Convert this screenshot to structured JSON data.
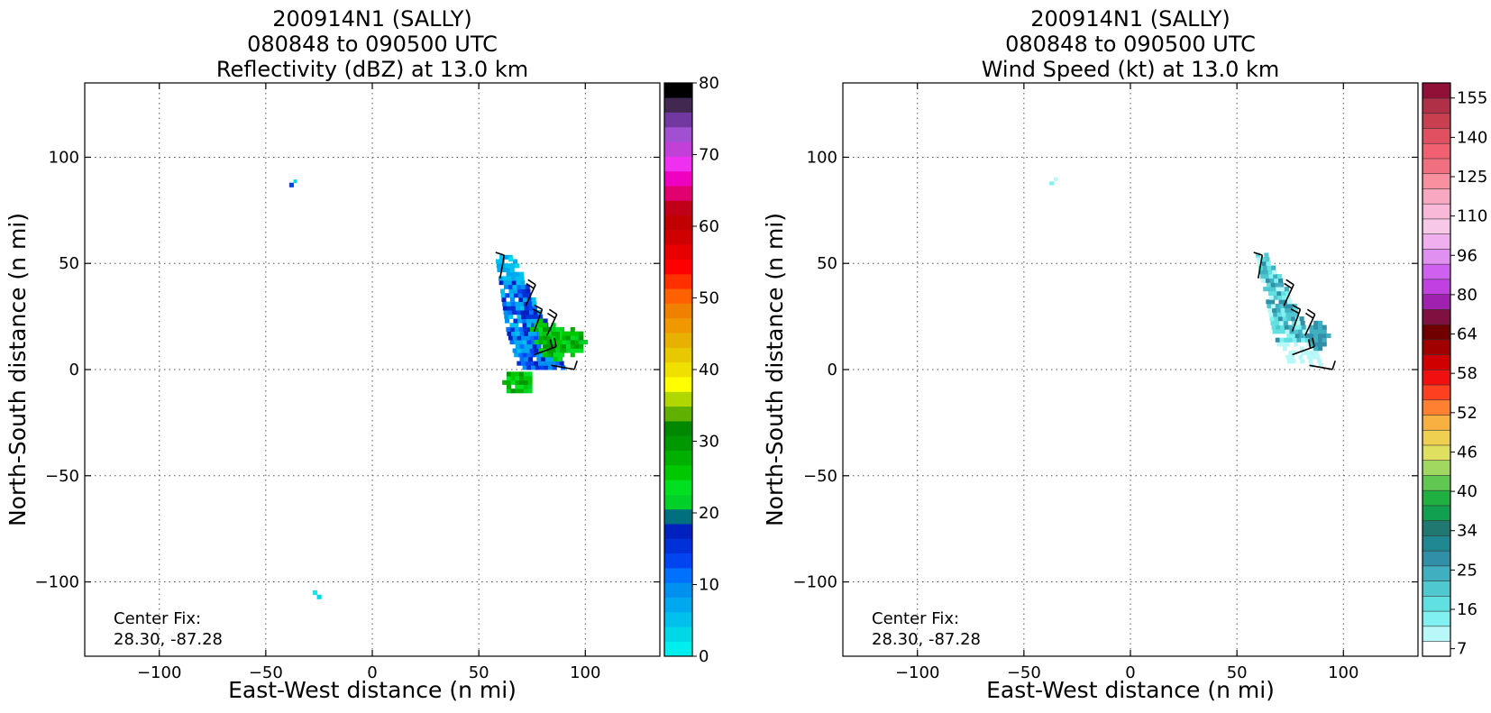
{
  "figure": {
    "left_panel": {
      "title_lines": [
        "200914N1 (SALLY)",
        "080848 to 090500 UTC",
        "Reflectivity (dBZ) at 13.0 km"
      ],
      "xlabel": "East-West distance (n mi)",
      "ylabel": "North-South distance (n mi)",
      "center_fix": [
        "Center Fix:",
        "28.30, -87.28"
      ]
    },
    "right_panel": {
      "title_lines": [
        "200914N1 (SALLY)",
        "080848 to 090500 UTC",
        "Wind Speed (kt) at 13.0 km"
      ],
      "xlabel": "East-West distance (n mi)",
      "ylabel": "North-South distance (n mi)",
      "center_fix": [
        "Center Fix:",
        "28.30, -87.28"
      ]
    }
  },
  "chart_data": [
    {
      "type": "heatmap",
      "title": "200914N1 (SALLY) 080848 to 090500 UTC Reflectivity (dBZ) at 13.0 km",
      "xlabel": "East-West distance (n mi)",
      "ylabel": "North-South distance (n mi)",
      "xlim": [
        -135,
        135
      ],
      "ylim": [
        -135,
        135
      ],
      "xticks": [
        -100,
        -50,
        0,
        50,
        100
      ],
      "yticks": [
        -100,
        -50,
        0,
        50,
        100
      ],
      "grid": true,
      "colorbar": {
        "label_values": [
          0,
          10,
          20,
          30,
          40,
          50,
          60,
          70,
          80
        ],
        "min": 0,
        "max": 80,
        "colors": [
          "#00eeee",
          "#00d8e8",
          "#00c0ee",
          "#00a8f0",
          "#0090f0",
          "#0070ff",
          "#0045f0",
          "#0030d8",
          "#0020c0",
          "#007080",
          "#00d028",
          "#00e020",
          "#00c800",
          "#00b000",
          "#009800",
          "#008800",
          "#60b000",
          "#b0d800",
          "#ffff00",
          "#f0e000",
          "#e8c800",
          "#e8b000",
          "#f09800",
          "#f08000",
          "#ff6000",
          "#ff3000",
          "#ff0000",
          "#e80000",
          "#d00000",
          "#c00000",
          "#c00018",
          "#e0006e",
          "#f000c0",
          "#f030f0",
          "#c040d8",
          "#a050d0",
          "#7038a0",
          "#402850",
          "#000000"
        ]
      },
      "regions": [
        {
          "name": "main echo (10-15 dBZ)",
          "approx_x_range": [
            62,
            88
          ],
          "approx_y_range": [
            0,
            50
          ],
          "approx_dbz": 12
        },
        {
          "name": "embedded cells (20-25 dBZ)",
          "approx_x_range": [
            70,
            98
          ],
          "approx_y_range": [
            4,
            24
          ],
          "approx_dbz": 22
        },
        {
          "name": "southern cell (20-25 dBZ)",
          "approx_x_range": [
            60,
            75
          ],
          "approx_y_range": [
            -13,
            -1
          ],
          "approx_dbz": 22
        },
        {
          "name": "isolated pixel",
          "approx_x": -38,
          "approx_y": 87,
          "approx_dbz": 12
        },
        {
          "name": "isolated pixel",
          "approx_x": -27,
          "approx_y": -106,
          "approx_dbz": 1
        }
      ],
      "wind_barbs_present": true,
      "annotation": "Center Fix: 28.30, -87.28"
    },
    {
      "type": "heatmap",
      "title": "200914N1 (SALLY) 080848 to 090500 UTC Wind Speed (kt) at 13.0 km",
      "xlabel": "East-West distance (n mi)",
      "ylabel": "North-South distance (n mi)",
      "xlim": [
        -135,
        135
      ],
      "ylim": [
        -135,
        135
      ],
      "xticks": [
        -100,
        -50,
        0,
        50,
        100
      ],
      "yticks": [
        -100,
        -50,
        0,
        50,
        100
      ],
      "grid": true,
      "colorbar": {
        "label_values": [
          7,
          16,
          25,
          34,
          40,
          46,
          52,
          58,
          64,
          80,
          96,
          110,
          125,
          140,
          155
        ],
        "colors": [
          "#ffffff",
          "#b8f8f8",
          "#80f0f0",
          "#60e0e0",
          "#50c8d0",
          "#40b0c0",
          "#3090a8",
          "#208890",
          "#207870",
          "#10a050",
          "#20b040",
          "#60c850",
          "#a0d860",
          "#e0e060",
          "#f0d050",
          "#f8b040",
          "#ff8030",
          "#ff4020",
          "#f01010",
          "#d00000",
          "#a00000",
          "#700000",
          "#801040",
          "#a020b0",
          "#c040e0",
          "#d060f0",
          "#e090f0",
          "#f0b0f0",
          "#f8c8e8",
          "#f8b8d8",
          "#f8a8c0",
          "#f890a0",
          "#f07080",
          "#f06070",
          "#e05060",
          "#c84050",
          "#b03048",
          "#901038"
        ]
      },
      "regions": [
        {
          "name": "main wind area (13-25 kt)",
          "approx_x_range": [
            58,
            92
          ],
          "approx_y_range": [
            1,
            54
          ],
          "approx_kt": 20
        },
        {
          "name": "isolated pixel",
          "approx_x": -37,
          "approx_y": 88,
          "approx_kt": 10
        }
      ],
      "wind_barbs_present": true,
      "annotation": "Center Fix: 28.30, -87.28"
    }
  ]
}
